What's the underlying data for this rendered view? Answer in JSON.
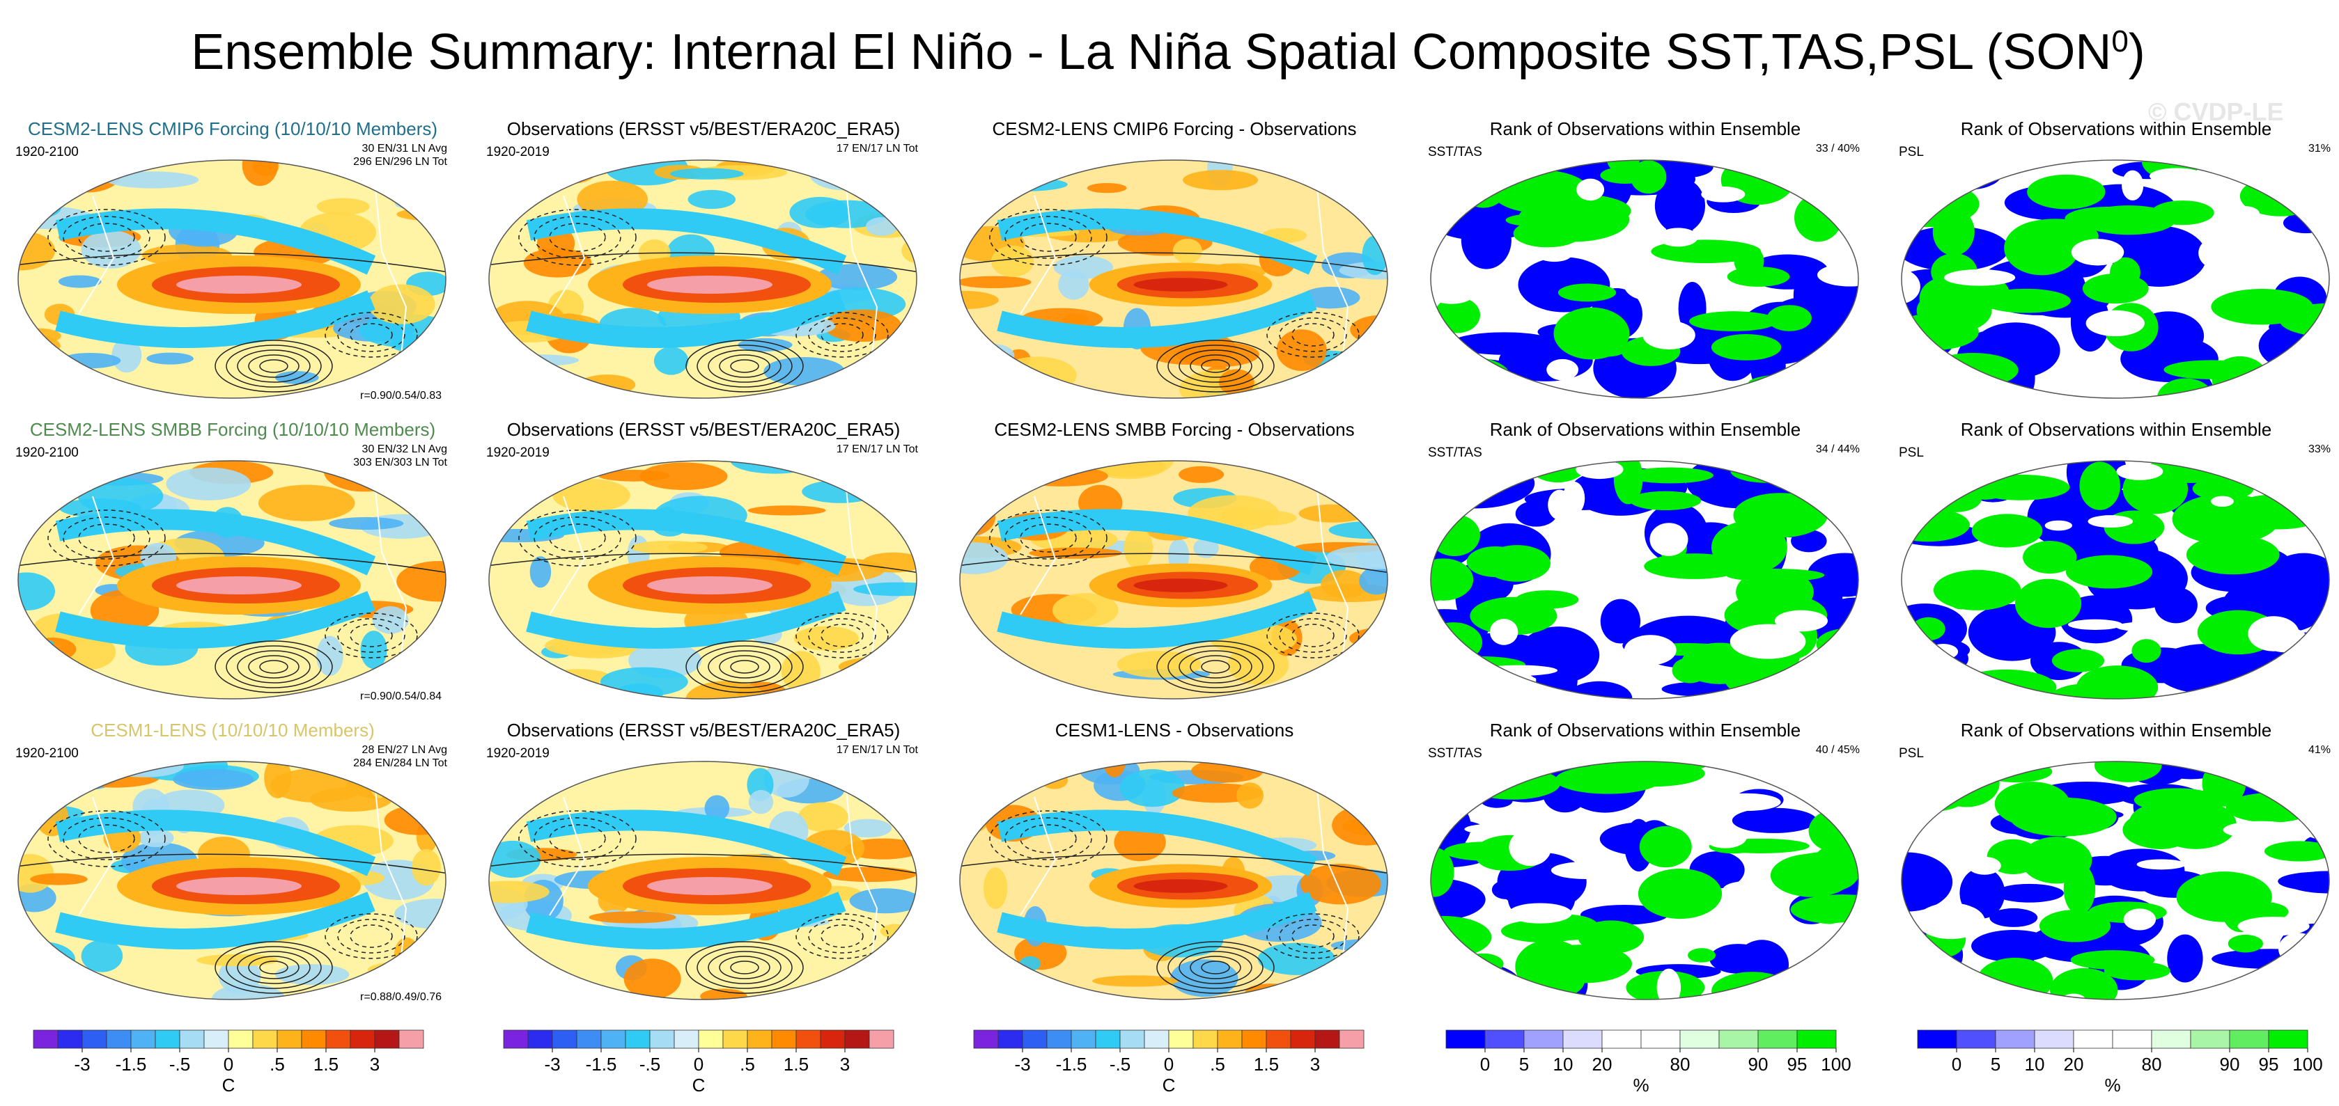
{
  "title": {
    "main": "Ensemble Summary: Internal El Niño - La Niña Spatial Composite SST,TAS,PSL (SON",
    "superscript": "0",
    "close": ")"
  },
  "watermark": "© CVDP-LE",
  "colors": {
    "cesm2_cmip6_title": "#1f6f8b",
    "cesm2_smbb_title": "#4f8a4f",
    "cesm1_title": "#d8c56a",
    "rank_blue": "#0000ff",
    "rank_green": "#00ee00"
  },
  "rows": [
    {
      "panels": [
        {
          "type": "sst",
          "title": "CESM2-LENS CMIP6 Forcing (10/10/10 Members)",
          "title_color": "#1f6f8b",
          "left_label": "1920-2100",
          "right_label": [
            "30 EN/31 LN Avg",
            "296 EN/296 LN Tot"
          ],
          "corr": "r=0.90/0.54/0.83"
        },
        {
          "type": "sst",
          "title": "Observations (ERSST v5/BEST/ERA20C_ERA5)",
          "left_label": "1920-2019",
          "right_label": [
            "17 EN/17 LN Tot"
          ]
        },
        {
          "type": "diff",
          "title": "CESM2-LENS CMIP6 Forcing - Observations"
        },
        {
          "type": "rank",
          "title": "Rank of Observations within Ensemble",
          "left_label": "SST/TAS",
          "right_label": [
            "33 /  40%"
          ]
        },
        {
          "type": "rank",
          "title": "Rank of Observations within Ensemble",
          "left_label": "PSL",
          "right_label": [
            "31%"
          ]
        }
      ]
    },
    {
      "panels": [
        {
          "type": "sst",
          "title": "CESM2-LENS SMBB Forcing (10/10/10 Members)",
          "title_color": "#4f8a4f",
          "left_label": "1920-2100",
          "right_label": [
            "30 EN/32 LN Avg",
            "303 EN/303 LN Tot"
          ],
          "corr": "r=0.90/0.54/0.84"
        },
        {
          "type": "sst",
          "title": "Observations (ERSST v5/BEST/ERA20C_ERA5)",
          "left_label": "1920-2019",
          "right_label": [
            "17 EN/17 LN Tot"
          ]
        },
        {
          "type": "diff",
          "title": "CESM2-LENS SMBB Forcing - Observations"
        },
        {
          "type": "rank",
          "title": "Rank of Observations within Ensemble",
          "left_label": "SST/TAS",
          "right_label": [
            "34 /  44%"
          ]
        },
        {
          "type": "rank",
          "title": "Rank of Observations within Ensemble",
          "left_label": "PSL",
          "right_label": [
            "33%"
          ]
        }
      ]
    },
    {
      "panels": [
        {
          "type": "sst",
          "title": "CESM1-LENS (10/10/10 Members)",
          "title_color": "#d8c56a",
          "left_label": "1920-2100",
          "right_label": [
            "28 EN/27 LN Avg",
            "284 EN/284 LN Tot"
          ],
          "corr": "r=0.88/0.49/0.76"
        },
        {
          "type": "sst",
          "title": "Observations (ERSST v5/BEST/ERA20C_ERA5)",
          "left_label": "1920-2019",
          "right_label": [
            "17 EN/17 LN Tot"
          ]
        },
        {
          "type": "diff",
          "title": "CESM1-LENS - Observations"
        },
        {
          "type": "rank",
          "title": "Rank of Observations within Ensemble",
          "left_label": "SST/TAS",
          "right_label": [
            "40 /  45%"
          ]
        },
        {
          "type": "rank",
          "title": "Rank of Observations within Ensemble",
          "left_label": "PSL",
          "right_label": [
            "41%"
          ]
        }
      ]
    }
  ],
  "chart_data": {
    "type": "heatmap",
    "description_levels_temperature": [
      -4,
      -3,
      -2,
      -1.5,
      -1,
      -0.5,
      -0.25,
      0,
      0.25,
      0.5,
      1,
      1.5,
      2,
      3,
      4
    ],
    "temperature_colorbar": {
      "colors": [
        "#7a24e0",
        "#2c2cf0",
        "#2d5ff5",
        "#3d8df5",
        "#4fb2f5",
        "#2fcbf5",
        "#a7dcf5",
        "#d8eef8",
        "#ffff9a",
        "#ffd84a",
        "#ffb31a",
        "#ff8a00",
        "#f2500e",
        "#d8260e",
        "#b51616",
        "#f5a0a8"
      ],
      "tick_labels": [
        "-3",
        "-1.5",
        "-.5",
        "0",
        ".5",
        "1.5",
        "3"
      ],
      "unit": "C"
    },
    "rank_colorbar": {
      "colors": [
        "#0000ff",
        "#5050ff",
        "#a0a0ff",
        "#dcdcff",
        "#ffffff",
        "#ffffff",
        "#e0ffe0",
        "#a8f5a8",
        "#60ee60",
        "#00ee00"
      ],
      "tick_labels": [
        "0",
        "5",
        "10",
        "20",
        "80",
        "90",
        "95",
        "100"
      ],
      "unit": "%"
    },
    "rank_values_percent": {
      "sst_tas": [
        40,
        44,
        45
      ],
      "psl": [
        31,
        33,
        41
      ]
    }
  }
}
